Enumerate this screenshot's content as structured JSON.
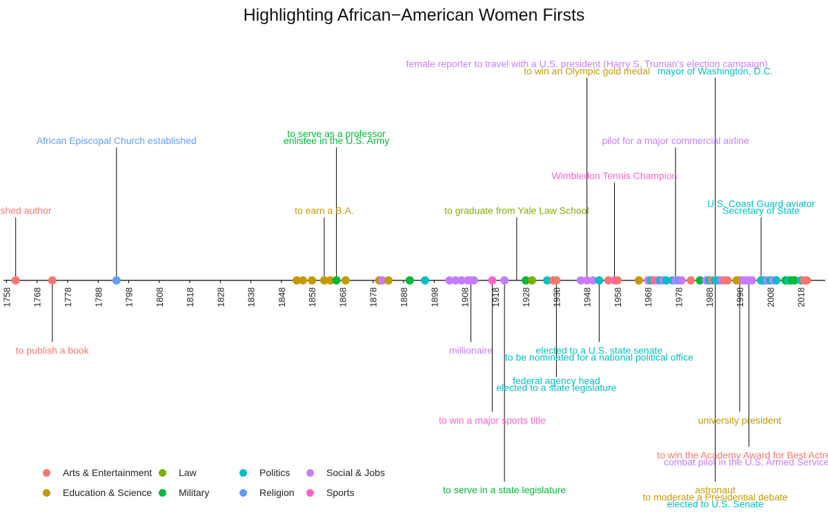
{
  "chart_data": {
    "type": "scatter",
    "title": "Highlighting African−American Women Firsts",
    "xlabel": "",
    "ylabel": "",
    "xlim": [
      1757,
      2026
    ],
    "x_ticks": [
      1758,
      1768,
      1778,
      1788,
      1798,
      1808,
      1818,
      1828,
      1838,
      1848,
      1858,
      1868,
      1878,
      1888,
      1898,
      1908,
      1918,
      1928,
      1938,
      1948,
      1958,
      1968,
      1978,
      1988,
      1998,
      2008,
      2018
    ],
    "grid": false,
    "legend_position": "bottom-left",
    "categories": [
      {
        "name": "Arts & Entertainment",
        "color": "#F8766D"
      },
      {
        "name": "Education & Science",
        "color": "#C49A00"
      },
      {
        "name": "Law",
        "color": "#7CAE00"
      },
      {
        "name": "Military",
        "color": "#00BA38"
      },
      {
        "name": "Politics",
        "color": "#00BFC4"
      },
      {
        "name": "Religion",
        "color": "#619CFF"
      },
      {
        "name": "Social & Jobs",
        "color": "#C77CFF"
      },
      {
        "name": "Sports",
        "color": "#FF61CC"
      }
    ],
    "labeled_events": [
      {
        "year": 1761,
        "category": "Arts & Entertainment",
        "label": "published author",
        "label_y": 3
      },
      {
        "year": 1773,
        "category": "Arts & Entertainment",
        "label": "to publish a book",
        "label_y": -3
      },
      {
        "year": 1794,
        "category": "Religion",
        "label": "African Episcopal Church established",
        "label_y": 6
      },
      {
        "year": 1862,
        "category": "Education & Science",
        "label": "to earn a B.A.",
        "label_y": 3
      },
      {
        "year": 1866,
        "category": "Military",
        "label": "enlistee in the U.S. Army",
        "label_y": 6
      },
      {
        "year": 1866,
        "category": "Military",
        "label": "to serve as a professor",
        "label_y": 6.3
      },
      {
        "year": 1910,
        "category": "Social & Jobs",
        "label": "millionaire",
        "label_y": -3
      },
      {
        "year": 1917,
        "category": "Sports",
        "label": "to win a major sports title",
        "label_y": -6
      },
      {
        "year": 1921,
        "category": "Military",
        "label": "to serve in a state legislature",
        "label_y": -9
      },
      {
        "year": 1925,
        "category": "Law",
        "label": "to graduate from Yale Law School",
        "label_y": 3
      },
      {
        "year": 1938,
        "category": "Politics",
        "label": "elected to a state legislature",
        "label_y": -4.6
      },
      {
        "year": 1938,
        "category": "Politics",
        "label": "federal agency head",
        "label_y": -4.3
      },
      {
        "year": 1948,
        "category": "Education & Science",
        "label": "to win an Olympic gold medal",
        "label_y": 9
      },
      {
        "year": 1948,
        "category": "Social & Jobs",
        "label": "female reporter to travel with a U.S. president (Harry S. Truman's election campaign)",
        "label_y": 9.3
      },
      {
        "year": 1952,
        "category": "Politics",
        "label": "elected to a U.S. state senate",
        "label_y": -3
      },
      {
        "year": 1952,
        "category": "Politics",
        "label": "to be nominated for a national political office",
        "label_y": -3.3
      },
      {
        "year": 1957,
        "category": "Sports",
        "label": "Wimbledon Tennis Champion",
        "label_y": 4.5
      },
      {
        "year": 1977,
        "category": "Social & Jobs",
        "label": "pilot for a major commercial airline",
        "label_y": 6
      },
      {
        "year": 1990,
        "category": "Politics",
        "label": "mayor of Washington, D.C.",
        "label_y": 9
      },
      {
        "year": 1990,
        "category": "Education & Science",
        "label": "astronaut",
        "label_y": -9
      },
      {
        "year": 1990,
        "category": "Education & Science",
        "label": "to moderate a Presidential debate",
        "label_y": -9.3
      },
      {
        "year": 1990,
        "category": "Politics",
        "label": "elected to U.S. Senate",
        "label_y": -9.6
      },
      {
        "year": 1998,
        "category": "Education & Science",
        "label": "university president",
        "label_y": -6
      },
      {
        "year": 2001,
        "category": "Arts & Entertainment",
        "label": "to win the Academy Award for Best Actress",
        "label_y": -7.5
      },
      {
        "year": 2001,
        "category": "Social & Jobs",
        "label": "combat pilot in the U.S. Armed Services",
        "label_y": -7.8
      },
      {
        "year": 2005,
        "category": "Politics",
        "label": "U.S. Coast Guard aviator",
        "label_y": 3.3
      },
      {
        "year": 2005,
        "category": "Politics",
        "label": "Secretary of State",
        "label_y": 3
      }
    ],
    "points": [
      {
        "year": 1761,
        "category": "Arts & Entertainment"
      },
      {
        "year": 1773,
        "category": "Arts & Entertainment"
      },
      {
        "year": 1794,
        "category": "Religion"
      },
      {
        "year": 1853,
        "category": "Education & Science"
      },
      {
        "year": 1855,
        "category": "Education & Science"
      },
      {
        "year": 1858,
        "category": "Education & Science"
      },
      {
        "year": 1862,
        "category": "Education & Science"
      },
      {
        "year": 1864,
        "category": "Education & Science"
      },
      {
        "year": 1866,
        "category": "Military"
      },
      {
        "year": 1869,
        "category": "Education & Science"
      },
      {
        "year": 1880,
        "category": "Education & Science"
      },
      {
        "year": 1881,
        "category": "Social & Jobs"
      },
      {
        "year": 1883,
        "category": "Education & Science"
      },
      {
        "year": 1890,
        "category": "Military"
      },
      {
        "year": 1895,
        "category": "Politics"
      },
      {
        "year": 1903,
        "category": "Social & Jobs"
      },
      {
        "year": 1905,
        "category": "Social & Jobs"
      },
      {
        "year": 1907,
        "category": "Social & Jobs"
      },
      {
        "year": 1909,
        "category": "Social & Jobs"
      },
      {
        "year": 1910,
        "category": "Social & Jobs"
      },
      {
        "year": 1911,
        "category": "Social & Jobs"
      },
      {
        "year": 1917,
        "category": "Sports"
      },
      {
        "year": 1921,
        "category": "Social & Jobs"
      },
      {
        "year": 1928,
        "category": "Military"
      },
      {
        "year": 1930,
        "category": "Law"
      },
      {
        "year": 1935,
        "category": "Politics"
      },
      {
        "year": 1937,
        "category": "Arts & Entertainment"
      },
      {
        "year": 1938,
        "category": "Arts & Entertainment"
      },
      {
        "year": 1946,
        "category": "Social & Jobs"
      },
      {
        "year": 1948,
        "category": "Social & Jobs"
      },
      {
        "year": 1950,
        "category": "Social & Jobs"
      },
      {
        "year": 1952,
        "category": "Politics"
      },
      {
        "year": 1955,
        "category": "Arts & Entertainment"
      },
      {
        "year": 1957,
        "category": "Sports"
      },
      {
        "year": 1958,
        "category": "Arts & Entertainment"
      },
      {
        "year": 1965,
        "category": "Education & Science"
      },
      {
        "year": 1968,
        "category": "Social & Jobs"
      },
      {
        "year": 1969,
        "category": "Politics"
      },
      {
        "year": 1970,
        "category": "Arts & Entertainment"
      },
      {
        "year": 1971,
        "category": "Sports"
      },
      {
        "year": 1972,
        "category": "Politics"
      },
      {
        "year": 1973,
        "category": "Social & Jobs"
      },
      {
        "year": 1974,
        "category": "Politics"
      },
      {
        "year": 1976,
        "category": "Politics"
      },
      {
        "year": 1977,
        "category": "Social & Jobs"
      },
      {
        "year": 1978,
        "category": "Religion"
      },
      {
        "year": 1979,
        "category": "Social & Jobs"
      },
      {
        "year": 1982,
        "category": "Arts & Entertainment"
      },
      {
        "year": 1985,
        "category": "Military"
      },
      {
        "year": 1987,
        "category": "Social & Jobs"
      },
      {
        "year": 1988,
        "category": "Politics"
      },
      {
        "year": 1989,
        "category": "Arts & Entertainment"
      },
      {
        "year": 1990,
        "category": "Politics"
      },
      {
        "year": 1991,
        "category": "Politics"
      },
      {
        "year": 1992,
        "category": "Social & Jobs"
      },
      {
        "year": 1993,
        "category": "Arts & Entertainment"
      },
      {
        "year": 1994,
        "category": "Arts & Entertainment"
      },
      {
        "year": 1997,
        "category": "Education & Science"
      },
      {
        "year": 1998,
        "category": "Education & Science"
      },
      {
        "year": 1999,
        "category": "Social & Jobs"
      },
      {
        "year": 2000,
        "category": "Social & Jobs"
      },
      {
        "year": 2001,
        "category": "Social & Jobs"
      },
      {
        "year": 2002,
        "category": "Social & Jobs"
      },
      {
        "year": 2005,
        "category": "Politics"
      },
      {
        "year": 2006,
        "category": "Politics"
      },
      {
        "year": 2007,
        "category": "Social & Jobs"
      },
      {
        "year": 2008,
        "category": "Politics"
      },
      {
        "year": 2009,
        "category": "Social & Jobs"
      },
      {
        "year": 2010,
        "category": "Politics"
      },
      {
        "year": 2013,
        "category": "Military"
      },
      {
        "year": 2014,
        "category": "Politics"
      },
      {
        "year": 2015,
        "category": "Military"
      },
      {
        "year": 2016,
        "category": "Military"
      },
      {
        "year": 2018,
        "category": "Politics"
      },
      {
        "year": 2019,
        "category": "Arts & Entertainment"
      },
      {
        "year": 2020,
        "category": "Arts & Entertainment"
      }
    ]
  }
}
